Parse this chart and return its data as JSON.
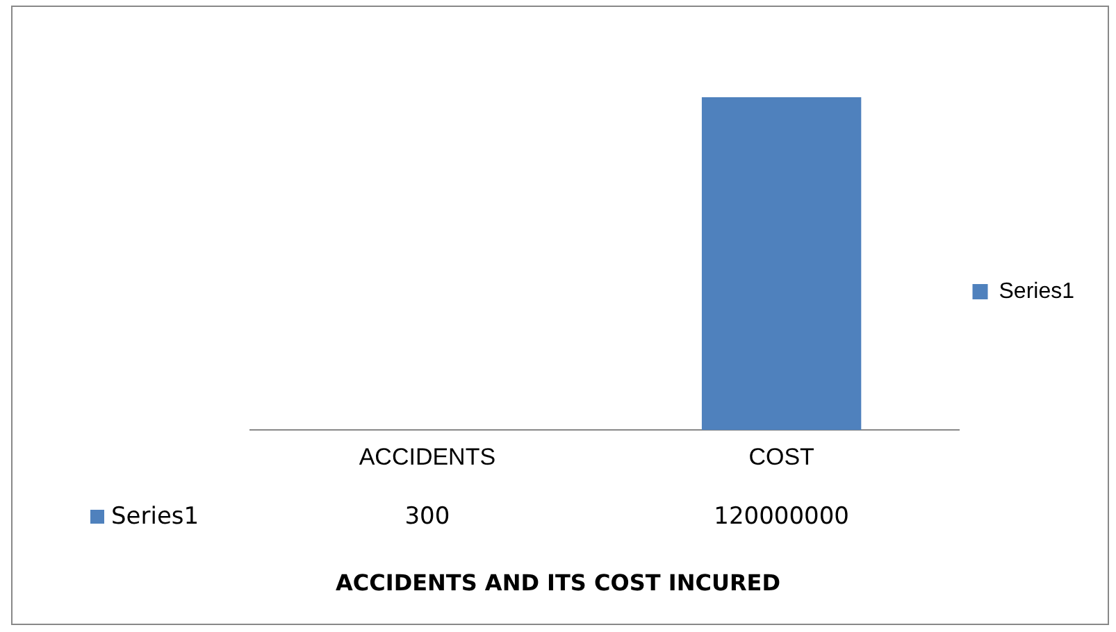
{
  "chart_data": {
    "type": "bar",
    "title": "ACCIDENTS AND ITS COST INCURED",
    "categories": [
      "ACCIDENTS",
      "COST"
    ],
    "series": [
      {
        "name": "Series1",
        "color": "#4f81bd",
        "values": [
          300,
          120000000
        ]
      }
    ],
    "data_labels": true,
    "legend": "right",
    "grid": false,
    "tick_labels": "x"
  }
}
